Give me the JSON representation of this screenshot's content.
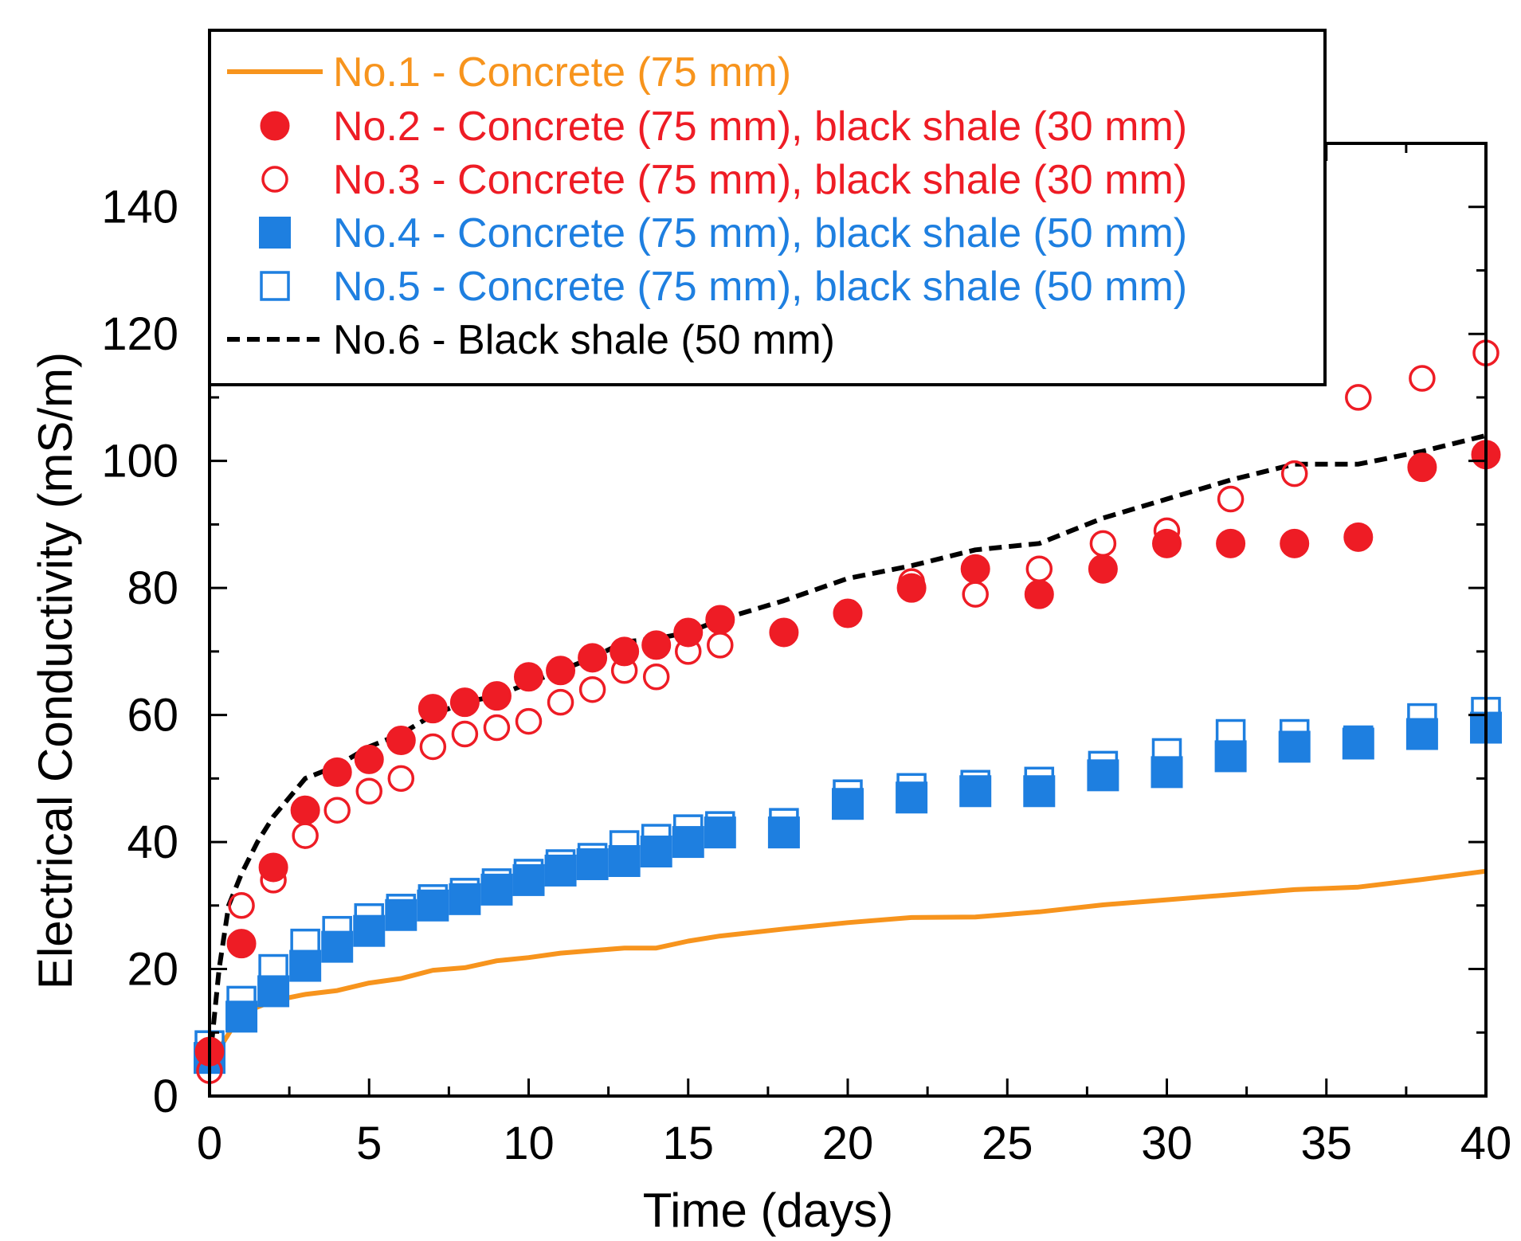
{
  "chart_data": {
    "type": "scatter",
    "title": "",
    "xlabel": "Time (days)",
    "ylabel": "Electrical Conductivity (mS/m)",
    "xlim": [
      0,
      40
    ],
    "ylim": [
      0,
      150
    ],
    "xticks": [
      0,
      5,
      10,
      15,
      20,
      25,
      30,
      35,
      40
    ],
    "yticks": [
      0,
      20,
      40,
      60,
      80,
      100,
      120,
      140
    ],
    "grid": false,
    "legend_position": "top-left",
    "series": [
      {
        "name": "No.1 - Concrete (75 mm)",
        "style": "line",
        "color": "#f7941d",
        "x": [
          0,
          0.5,
          1,
          2,
          3,
          4,
          5,
          6,
          7,
          8,
          9,
          10,
          11,
          12,
          13,
          14,
          15,
          16,
          18,
          20,
          22,
          24,
          26,
          28,
          30,
          32,
          34,
          36,
          38,
          40
        ],
        "y": [
          5,
          9,
          13,
          15,
          16,
          16.6,
          17.8,
          18.5,
          19.8,
          20.2,
          21.3,
          21.8,
          22.5,
          22.9,
          23.3,
          23.3,
          24.4,
          25.2,
          26.3,
          27.3,
          28.1,
          28.2,
          29,
          30.1,
          30.9,
          31.7,
          32.5,
          32.9,
          34.1,
          35.4
        ]
      },
      {
        "name": "No.2 - Concrete (75 mm), black shale (30 mm)",
        "style": "filled-circle",
        "color": "#ee1c25",
        "x": [
          0,
          1,
          2,
          3,
          4,
          5,
          6,
          7,
          8,
          9,
          10,
          11,
          12,
          13,
          14,
          15,
          16,
          18,
          20,
          22,
          24,
          26,
          28,
          30,
          32,
          34,
          36,
          38,
          40
        ],
        "y": [
          7,
          24,
          36,
          45,
          51,
          53,
          56,
          61,
          62,
          63,
          66,
          67,
          69,
          70,
          71,
          73,
          75,
          73,
          76,
          80,
          83,
          79,
          83,
          87,
          87,
          87,
          88,
          99,
          101
        ]
      },
      {
        "name": "No.3 - Concrete (75 mm), black shale (30 mm)",
        "style": "open-circle",
        "color": "#ee1c25",
        "x": [
          0,
          1,
          2,
          3,
          4,
          5,
          6,
          7,
          8,
          9,
          10,
          11,
          12,
          13,
          14,
          15,
          16,
          22,
          24,
          26,
          28,
          30,
          32,
          34,
          36,
          38,
          40
        ],
        "y": [
          4,
          30,
          34,
          41,
          45,
          48,
          50,
          55,
          57,
          58,
          59,
          62,
          64,
          67,
          66,
          70,
          71,
          81,
          79,
          83,
          87,
          89,
          94,
          98,
          110,
          113,
          117
        ]
      },
      {
        "name": "No.4 - Concrete (75 mm), black shale (50 mm)",
        "style": "filled-square",
        "color": "#1e7fe0",
        "x": [
          0,
          1,
          2,
          3,
          4,
          5,
          6,
          7,
          8,
          9,
          10,
          11,
          12,
          13,
          14,
          15,
          16,
          18,
          20,
          22,
          24,
          26,
          28,
          30,
          32,
          34,
          36,
          38,
          40
        ],
        "y": [
          6,
          12.5,
          16.5,
          20.5,
          23.5,
          26,
          28.5,
          30,
          31,
          32.5,
          34,
          35.5,
          36.5,
          37,
          38.5,
          40,
          41.5,
          41.5,
          46,
          47,
          48,
          48,
          50.5,
          51,
          53.5,
          55,
          55.5,
          57,
          58
        ]
      },
      {
        "name": "No.5 - Concrete (75 mm), black shale (50 mm)",
        "style": "open-square",
        "color": "#1e7fe0",
        "x": [
          0,
          1,
          2,
          3,
          4,
          5,
          6,
          7,
          8,
          9,
          10,
          11,
          12,
          13,
          14,
          15,
          16,
          18,
          20,
          22,
          24,
          26,
          28,
          30,
          32,
          34,
          36,
          38,
          40
        ],
        "y": [
          8,
          15,
          20,
          24,
          26,
          28,
          29.5,
          31,
          32,
          33.5,
          35,
          36.5,
          37.5,
          39.5,
          40.5,
          42,
          42.5,
          43,
          47.5,
          48.5,
          49,
          49.5,
          52,
          54,
          57,
          57,
          56,
          59.5,
          60.5
        ]
      },
      {
        "name": "No.6 - Black shale (50 mm)",
        "style": "dashed-line",
        "color": "#000000",
        "x": [
          0,
          0.3,
          0.6,
          1,
          1.5,
          2,
          2.5,
          3,
          4,
          5,
          6,
          7,
          8,
          9,
          10,
          11,
          12,
          13,
          14,
          15,
          16,
          18,
          20,
          22,
          24,
          26,
          28,
          30,
          32,
          34,
          36,
          38,
          40
        ],
        "y": [
          5,
          20,
          30,
          35,
          40,
          44,
          47,
          50,
          52,
          55,
          57,
          60,
          62,
          63,
          65,
          67,
          69,
          71.5,
          72,
          73,
          75,
          78,
          81.5,
          83.5,
          86,
          87,
          91,
          94,
          97,
          99.5,
          99.5,
          101.5,
          104
        ]
      }
    ]
  }
}
